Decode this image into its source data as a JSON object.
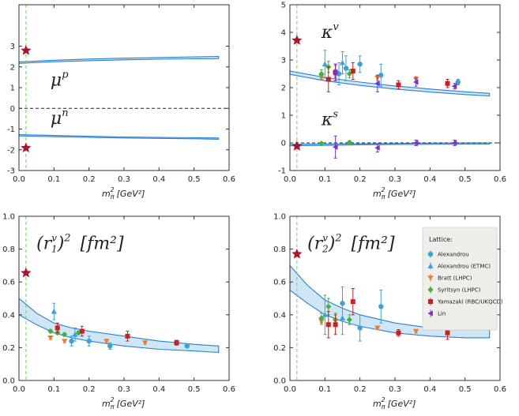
{
  "series_meta": [
    {
      "key": "alex",
      "name": "Alexandrou",
      "color": "#3ea0d8",
      "marker": "circle"
    },
    {
      "key": "etmc",
      "name": "Alexandrou (ETMC)",
      "color": "#3ea0d8",
      "marker": "tri-up"
    },
    {
      "key": "bratt",
      "name": "Bratt (LHPC)",
      "color": "#f07a2a",
      "marker": "tri-down"
    },
    {
      "key": "syr",
      "name": "Syritsyn (LHPC)",
      "color": "#3fb23a",
      "marker": "diamond"
    },
    {
      "key": "yama",
      "name": "Yamazaki (RBC/UKQCD)",
      "color": "#cc1f1f",
      "marker": "square"
    },
    {
      "key": "lin",
      "name": "Lin",
      "color": "#7a2fd0",
      "marker": "tri-left"
    }
  ],
  "legend": {
    "title": "Lattice:"
  },
  "chart_data": [
    {
      "type": "line",
      "panel": "mu",
      "title": "",
      "xlabel": "m",
      "xlabel_sub": "π",
      "xlabel_unit": "[GeV²]",
      "xlim": [
        0,
        0.6
      ],
      "ylim": [
        -3,
        5
      ],
      "xticks": [
        "0.0",
        "0.1",
        "0.2",
        "0.3",
        "0.4",
        "0.5",
        "0.6"
      ],
      "yticks": [
        "-3",
        "-2",
        "-1",
        "0",
        "1",
        "2",
        "3"
      ],
      "ytick_values": [
        -3,
        -2,
        -1,
        0,
        1,
        2,
        3
      ],
      "labels": [
        {
          "text": "μ",
          "sup": "p",
          "x": 0.09,
          "y": 1.1
        },
        {
          "text": "μ",
          "sup": "n",
          "x": 0.09,
          "y": -0.75
        }
      ],
      "bands": [
        {
          "x": [
            0.0,
            0.1,
            0.2,
            0.3,
            0.4,
            0.5,
            0.57
          ],
          "lo": [
            2.17,
            2.25,
            2.3,
            2.34,
            2.37,
            2.39,
            2.4
          ],
          "hi": [
            2.24,
            2.32,
            2.38,
            2.42,
            2.45,
            2.48,
            2.5
          ]
        },
        {
          "x": [
            0.0,
            0.1,
            0.2,
            0.3,
            0.4,
            0.5,
            0.57
          ],
          "lo": [
            -1.33,
            -1.37,
            -1.4,
            -1.43,
            -1.45,
            -1.47,
            -1.49
          ],
          "hi": [
            -1.27,
            -1.31,
            -1.35,
            -1.38,
            -1.4,
            -1.42,
            -1.43
          ]
        }
      ],
      "stars": [
        {
          "x": 0.02,
          "y": 2.79
        },
        {
          "x": 0.02,
          "y": -1.91
        }
      ],
      "zero_line": 0,
      "vline": 0.02,
      "points": []
    },
    {
      "type": "scatter",
      "panel": "kappa",
      "title": "",
      "xlabel": "m",
      "xlabel_sub": "π",
      "xlabel_unit": "[GeV²]",
      "xlim": [
        0,
        0.6
      ],
      "ylim": [
        -1,
        5
      ],
      "xticks": [
        "0.0",
        "0.1",
        "0.2",
        "0.3",
        "0.4",
        "0.5",
        "0.6"
      ],
      "yticks": [
        "-1",
        "0",
        "1",
        "2",
        "3",
        "4",
        "5"
      ],
      "ytick_values": [
        -1,
        0,
        1,
        2,
        3,
        4,
        5
      ],
      "labels": [
        {
          "text": "κ",
          "sup": "v",
          "x": 0.09,
          "y": 3.8
        },
        {
          "text": "κ",
          "sup": "s",
          "x": 0.09,
          "y": 0.65
        }
      ],
      "bands": [
        {
          "x": [
            0.0,
            0.1,
            0.2,
            0.3,
            0.4,
            0.5,
            0.57
          ],
          "lo": [
            2.48,
            2.25,
            2.08,
            1.95,
            1.84,
            1.75,
            1.7
          ],
          "hi": [
            2.6,
            2.37,
            2.2,
            2.06,
            1.95,
            1.85,
            1.79
          ]
        },
        {
          "x": [
            0.0,
            0.1,
            0.2,
            0.3,
            0.4,
            0.5,
            0.57
          ],
          "lo": [
            -0.1,
            -0.09,
            -0.07,
            -0.06,
            -0.05,
            -0.04,
            -0.04
          ],
          "hi": [
            -0.05,
            -0.04,
            -0.03,
            -0.02,
            -0.01,
            0.0,
            0.0
          ]
        }
      ],
      "stars": [
        {
          "x": 0.02,
          "y": 3.71
        },
        {
          "x": 0.02,
          "y": -0.12
        }
      ],
      "zero_line": 0,
      "vline": 0.02,
      "points": [
        {
          "s": "alex",
          "x": 0.14,
          "y": 2.5,
          "e": 0.4
        },
        {
          "s": "alex",
          "x": 0.16,
          "y": 2.7,
          "e": 0.45
        },
        {
          "s": "alex",
          "x": 0.2,
          "y": 2.85,
          "e": 0.3
        },
        {
          "s": "alex",
          "x": 0.26,
          "y": 2.45,
          "e": 0.4
        },
        {
          "s": "alex",
          "x": 0.48,
          "y": 2.2,
          "e": 0.1
        },
        {
          "s": "etmc",
          "x": 0.1,
          "y": 2.85,
          "e": 0.5
        },
        {
          "s": "etmc",
          "x": 0.15,
          "y": 2.9,
          "e": 0.4
        },
        {
          "s": "bratt",
          "x": 0.09,
          "y": 2.4,
          "e": 0.1
        },
        {
          "s": "bratt",
          "x": 0.13,
          "y": 2.45,
          "e": 0.1
        },
        {
          "s": "bratt",
          "x": 0.25,
          "y": 2.35,
          "e": 0.1
        },
        {
          "s": "bratt",
          "x": 0.36,
          "y": 2.3,
          "e": 0.1
        },
        {
          "s": "syr",
          "x": 0.09,
          "y": 2.5,
          "e": 0.15
        },
        {
          "s": "syr",
          "x": 0.11,
          "y": 2.75,
          "e": 0.2
        },
        {
          "s": "syr",
          "x": 0.13,
          "y": 2.6,
          "e": 0.2
        },
        {
          "s": "syr",
          "x": 0.17,
          "y": 2.5,
          "e": 0.15
        },
        {
          "s": "yama",
          "x": 0.11,
          "y": 2.3,
          "e": 0.45
        },
        {
          "s": "yama",
          "x": 0.13,
          "y": 2.55,
          "e": 0.3
        },
        {
          "s": "yama",
          "x": 0.18,
          "y": 2.6,
          "e": 0.3
        },
        {
          "s": "yama",
          "x": 0.31,
          "y": 2.1,
          "e": 0.15
        },
        {
          "s": "yama",
          "x": 0.45,
          "y": 2.15,
          "e": 0.15
        },
        {
          "s": "lin",
          "x": 0.13,
          "y": 2.55,
          "e": 0.3
        },
        {
          "s": "lin",
          "x": 0.25,
          "y": 2.15,
          "e": 0.3
        },
        {
          "s": "lin",
          "x": 0.36,
          "y": 2.2,
          "e": 0.15
        },
        {
          "s": "lin",
          "x": 0.47,
          "y": 2.05,
          "e": 0.1
        },
        {
          "s": "syr",
          "x": 0.09,
          "y": -0.02,
          "e": 0.05
        },
        {
          "s": "syr",
          "x": 0.17,
          "y": 0.02,
          "e": 0.05
        },
        {
          "s": "lin",
          "x": 0.13,
          "y": -0.15,
          "e": 0.4
        },
        {
          "s": "lin",
          "x": 0.25,
          "y": -0.18,
          "e": 0.15
        },
        {
          "s": "lin",
          "x": 0.36,
          "y": 0.0,
          "e": 0.1
        },
        {
          "s": "lin",
          "x": 0.47,
          "y": 0.0,
          "e": 0.1
        }
      ]
    },
    {
      "type": "scatter",
      "panel": "r1",
      "title": "",
      "xlabel": "m",
      "xlabel_sub": "π",
      "xlabel_unit": "[GeV²]",
      "xlim": [
        0,
        0.6
      ],
      "ylim": [
        0,
        1.0
      ],
      "xticks": [
        "0.0",
        "0.1",
        "0.2",
        "0.3",
        "0.4",
        "0.5",
        "0.6"
      ],
      "yticks": [
        "0.0",
        "0.2",
        "0.4",
        "0.6",
        "0.8",
        "1.0"
      ],
      "ytick_values": [
        0,
        0.2,
        0.4,
        0.6,
        0.8,
        1.0
      ],
      "labels": [
        {
          "text": "(r",
          "sub": "1",
          "sup2": "v",
          "tail": ")",
          "sup": "2",
          "unit": "[fm²]",
          "x": 0.05,
          "y": 0.8
        }
      ],
      "bands": [
        {
          "x": [
            0.0,
            0.05,
            0.1,
            0.15,
            0.2,
            0.3,
            0.4,
            0.5,
            0.57
          ],
          "lo": [
            0.4,
            0.34,
            0.29,
            0.26,
            0.24,
            0.21,
            0.19,
            0.18,
            0.17
          ],
          "hi": [
            0.5,
            0.41,
            0.35,
            0.32,
            0.3,
            0.27,
            0.24,
            0.22,
            0.21
          ]
        }
      ],
      "stars": [
        {
          "x": 0.02,
          "y": 0.655
        }
      ],
      "zero_line": null,
      "vline": 0.02,
      "points": [
        {
          "s": "alex",
          "x": 0.15,
          "y": 0.24,
          "e": 0.03
        },
        {
          "s": "alex",
          "x": 0.2,
          "y": 0.24,
          "e": 0.03
        },
        {
          "s": "alex",
          "x": 0.26,
          "y": 0.21,
          "e": 0.02
        },
        {
          "s": "alex",
          "x": 0.48,
          "y": 0.21,
          "e": 0.01
        },
        {
          "s": "etmc",
          "x": 0.1,
          "y": 0.42,
          "e": 0.05
        },
        {
          "s": "etmc",
          "x": 0.16,
          "y": 0.28,
          "e": 0.04
        },
        {
          "s": "bratt",
          "x": 0.09,
          "y": 0.26,
          "e": 0.01
        },
        {
          "s": "bratt",
          "x": 0.13,
          "y": 0.24,
          "e": 0.01
        },
        {
          "s": "bratt",
          "x": 0.25,
          "y": 0.24,
          "e": 0.01
        },
        {
          "s": "bratt",
          "x": 0.36,
          "y": 0.23,
          "e": 0.01
        },
        {
          "s": "syr",
          "x": 0.09,
          "y": 0.3,
          "e": 0.01
        },
        {
          "s": "syr",
          "x": 0.11,
          "y": 0.29,
          "e": 0.01
        },
        {
          "s": "syr",
          "x": 0.13,
          "y": 0.28,
          "e": 0.01
        },
        {
          "s": "syr",
          "x": 0.17,
          "y": 0.29,
          "e": 0.01
        },
        {
          "s": "yama",
          "x": 0.11,
          "y": 0.32,
          "e": 0.03
        },
        {
          "s": "yama",
          "x": 0.18,
          "y": 0.3,
          "e": 0.03
        },
        {
          "s": "yama",
          "x": 0.31,
          "y": 0.27,
          "e": 0.03
        },
        {
          "s": "yama",
          "x": 0.45,
          "y": 0.23,
          "e": 0.015
        }
      ]
    },
    {
      "type": "scatter",
      "panel": "r2",
      "title": "",
      "xlabel": "m",
      "xlabel_sub": "π",
      "xlabel_unit": "[GeV²]",
      "xlim": [
        0,
        0.6
      ],
      "ylim": [
        0,
        1.0
      ],
      "xticks": [
        "0.0",
        "0.1",
        "0.2",
        "0.3",
        "0.4",
        "0.5",
        "0.6"
      ],
      "yticks": [
        "0.0",
        "0.2",
        "0.4",
        "0.6",
        "0.8",
        "1.0"
      ],
      "ytick_values": [
        0,
        0.2,
        0.4,
        0.6,
        0.8,
        1.0
      ],
      "labels": [
        {
          "text": "(r",
          "sub": "2",
          "sup2": "v",
          "tail": ")",
          "sup": "2",
          "unit": "[fm²]",
          "x": 0.05,
          "y": 0.8
        }
      ],
      "bands": [
        {
          "x": [
            0.0,
            0.05,
            0.1,
            0.15,
            0.2,
            0.3,
            0.4,
            0.5,
            0.57
          ],
          "lo": [
            0.55,
            0.47,
            0.4,
            0.36,
            0.33,
            0.29,
            0.27,
            0.26,
            0.26
          ],
          "hi": [
            0.7,
            0.58,
            0.49,
            0.44,
            0.4,
            0.35,
            0.32,
            0.31,
            0.31
          ]
        }
      ],
      "stars": [
        {
          "x": 0.02,
          "y": 0.77
        }
      ],
      "zero_line": null,
      "vline": 0.02,
      "points": [
        {
          "s": "alex",
          "x": 0.15,
          "y": 0.47,
          "e": 0.1
        },
        {
          "s": "alex",
          "x": 0.2,
          "y": 0.32,
          "e": 0.08
        },
        {
          "s": "alex",
          "x": 0.26,
          "y": 0.45,
          "e": 0.1
        },
        {
          "s": "alex",
          "x": 0.48,
          "y": 0.34,
          "e": 0.02
        },
        {
          "s": "etmc",
          "x": 0.1,
          "y": 0.4,
          "e": 0.12
        },
        {
          "s": "etmc",
          "x": 0.15,
          "y": 0.38,
          "e": 0.1
        },
        {
          "s": "bratt",
          "x": 0.09,
          "y": 0.36,
          "e": 0.02
        },
        {
          "s": "bratt",
          "x": 0.13,
          "y": 0.36,
          "e": 0.02
        },
        {
          "s": "bratt",
          "x": 0.25,
          "y": 0.32,
          "e": 0.01
        },
        {
          "s": "bratt",
          "x": 0.36,
          "y": 0.3,
          "e": 0.01
        },
        {
          "s": "syr",
          "x": 0.09,
          "y": 0.38,
          "e": 0.03
        },
        {
          "s": "syr",
          "x": 0.11,
          "y": 0.45,
          "e": 0.05
        },
        {
          "s": "syr",
          "x": 0.13,
          "y": 0.37,
          "e": 0.04
        },
        {
          "s": "syr",
          "x": 0.17,
          "y": 0.37,
          "e": 0.03
        },
        {
          "s": "yama",
          "x": 0.11,
          "y": 0.34,
          "e": 0.08
        },
        {
          "s": "yama",
          "x": 0.13,
          "y": 0.34,
          "e": 0.06
        },
        {
          "s": "yama",
          "x": 0.18,
          "y": 0.48,
          "e": 0.08
        },
        {
          "s": "yama",
          "x": 0.31,
          "y": 0.29,
          "e": 0.02
        },
        {
          "s": "yama",
          "x": 0.45,
          "y": 0.29,
          "e": 0.04
        }
      ]
    }
  ]
}
